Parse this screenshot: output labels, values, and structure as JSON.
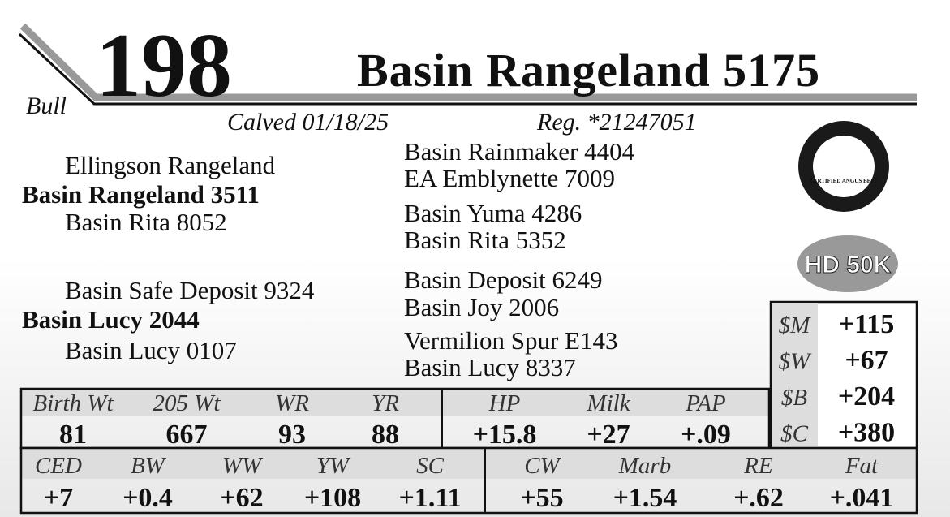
{
  "lot": "198",
  "name": "Basin Rangeland 5175",
  "sex": "Bull",
  "calved": "Calved 01/18/25",
  "reg": "Reg. *21247051",
  "pedigree": {
    "sire_sire": "Ellingson Rangeland",
    "sire": "Basin Rangeland 3511",
    "sire_dam": "Basin Rita 8052",
    "dam_sire": "Basin Safe Deposit 9324",
    "dam": "Basin Lucy 2044",
    "dam_dam": "Basin Lucy 0107",
    "ancestors": [
      "Basin Rainmaker 4404",
      "EA Emblynette 7009",
      "Basin Yuma 4286",
      "Basin Rita 5352",
      "Basin Deposit 6249",
      "Basin Joy 2006",
      "Vermilion Spur E143",
      "Basin Lucy 8337"
    ]
  },
  "badges": {
    "logo": "CERTIFIED ANGUS BEEF",
    "genomic": "HD 50K"
  },
  "indexes": {
    "headers": [
      "$M",
      "$W",
      "$B",
      "$C"
    ],
    "values": [
      "+115",
      "+67",
      "+204",
      "+380"
    ]
  },
  "performance": {
    "headers": [
      "Birth Wt",
      "205 Wt",
      "WR",
      "YR",
      "HP",
      "Milk",
      "PAP"
    ],
    "values": [
      "81",
      "667",
      "93",
      "88",
      "+15.8",
      "+27",
      "+.09"
    ]
  },
  "epds": {
    "headers": [
      "CED",
      "BW",
      "WW",
      "YW",
      "SC",
      "CW",
      "Marb",
      "RE",
      "Fat"
    ],
    "values": [
      "+7",
      "+0.4",
      "+62",
      "+108",
      "+1.11",
      "+55",
      "+1.54",
      "+.62",
      "+.041"
    ]
  }
}
